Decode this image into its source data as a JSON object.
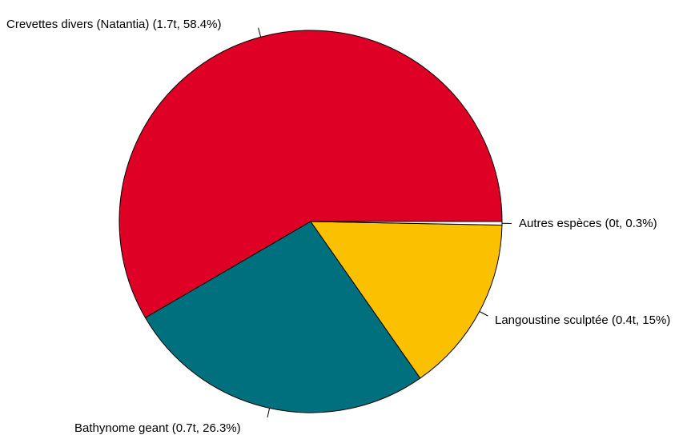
{
  "chart_data": {
    "type": "pie",
    "slices": [
      {
        "label": "Crevettes divers (Natantia) (1.7t, 58.4%)",
        "value": 58.4,
        "color": "#DE0025"
      },
      {
        "label": "Bathynome geant (0.7t, 26.3%)",
        "value": 26.3,
        "color": "#00707E"
      },
      {
        "label": "Langoustine sculptée (0.4t, 15%)",
        "value": 15.0,
        "color": "#FBC000"
      },
      {
        "label": "Autres espèces (0t, 0.3%)",
        "value": 0.3,
        "color": "#FFFFFF"
      }
    ]
  }
}
